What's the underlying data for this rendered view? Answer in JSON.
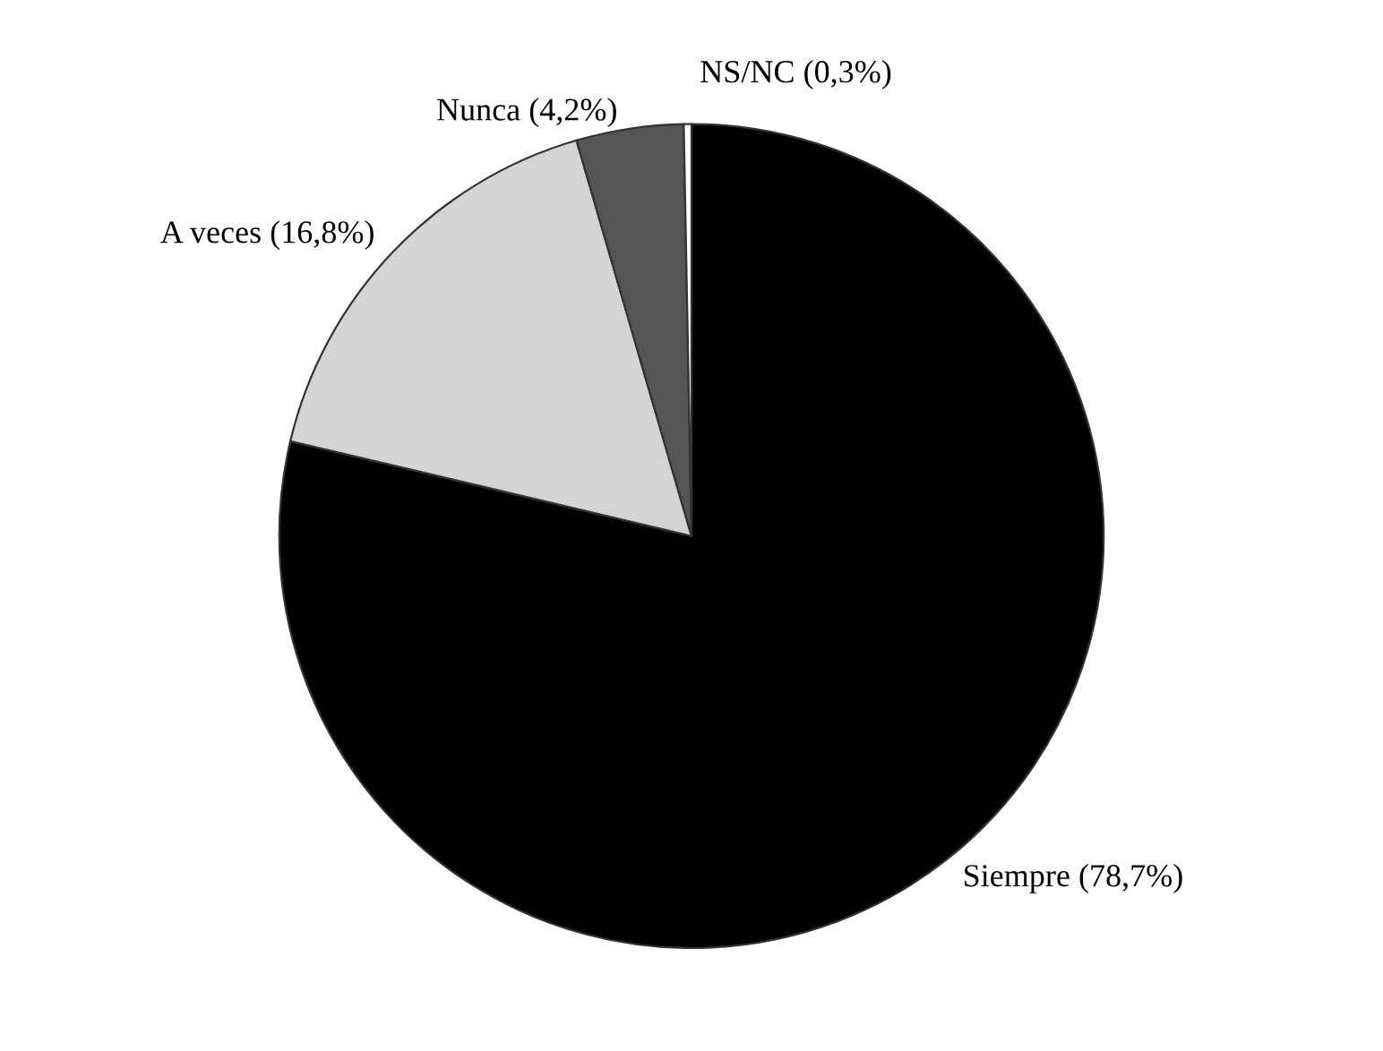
{
  "chart_data": {
    "type": "pie",
    "categories": [
      "Siempre",
      "A veces",
      "Nunca",
      "NS/NC"
    ],
    "values": [
      78.7,
      16.8,
      4.2,
      0.3
    ],
    "value_labels": [
      "(78,7%)",
      "(16,8%)",
      "(4,2%)",
      "(0,3%)"
    ],
    "colors": [
      "#000000",
      "#d4d4d4",
      "#555555",
      "#ffffff"
    ]
  }
}
